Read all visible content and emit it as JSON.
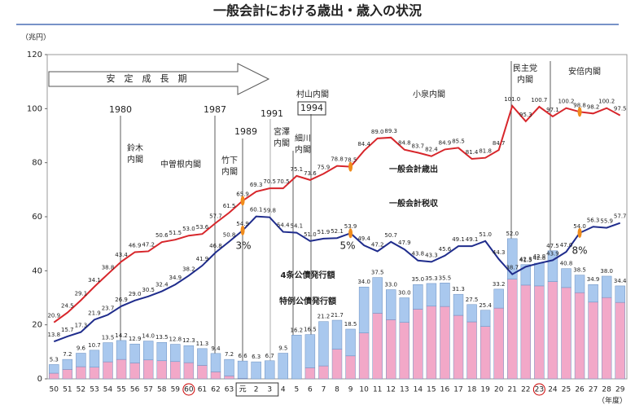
{
  "chart_data": {
    "type": "combo",
    "title": "一般会計における歳出・歳入の状況",
    "y_label": "（兆円）",
    "x_label": "（年度）",
    "categories": [
      "50",
      "51",
      "52",
      "53",
      "54",
      "55",
      "56",
      "57",
      "58",
      "59",
      "60",
      "61",
      "62",
      "63",
      "元",
      "2",
      "3",
      "4",
      "5",
      "6",
      "7",
      "8",
      "9",
      "10",
      "11",
      "12",
      "13",
      "14",
      "15",
      "16",
      "17",
      "18",
      "19",
      "20",
      "21",
      "22",
      "23",
      "24",
      "25",
      "26",
      "27",
      "28",
      "29"
    ],
    "ylim": [
      0,
      120
    ],
    "yticks": [
      0,
      20,
      40,
      60,
      80,
      100,
      120
    ],
    "series": [
      {
        "name": "一般会計歳出",
        "color": "#d7262b",
        "kind": "line",
        "values": [
          20.9,
          24.5,
          29.1,
          34.1,
          38.8,
          43.4,
          46.9,
          47.2,
          50.6,
          51.5,
          53.0,
          53.6,
          57.7,
          61.5,
          65.9,
          69.3,
          70.5,
          70.5,
          75.1,
          73.6,
          75.9,
          78.8,
          78.5,
          84.4,
          89.0,
          89.3,
          84.8,
          83.7,
          82.4,
          84.9,
          85.5,
          81.4,
          81.8,
          84.7,
          101.0,
          95.3,
          100.7,
          97.1,
          100.2,
          98.8,
          98.2,
          100.2,
          97.5
        ],
        "value_labels": [
          "20.9",
          "24.5",
          "29.1",
          "34.1",
          "38.8",
          "43.4",
          "46.9",
          "47.2",
          "50.6",
          "51.5",
          "53.0",
          "53.6",
          "57.7",
          "61.5",
          "65.9",
          "69.3",
          "70.5",
          "70.5",
          "75.1",
          "73.6",
          "75.9",
          "78.8",
          "78.5",
          "84.4",
          "89.0",
          "89.3",
          "84.8",
          "83.7",
          "82.4",
          "84.9",
          "85.5",
          "81.4",
          "81.8",
          "84.7",
          "101.0",
          "95.3",
          "100.7",
          "97.1",
          "100.2",
          "98.8",
          "98.2",
          "100.2",
          "97.5"
        ]
      },
      {
        "name": "一般会計税収",
        "color": "#1f2c8c",
        "kind": "line",
        "values": [
          13.8,
          15.7,
          17.3,
          21.9,
          23.7,
          26.9,
          29.0,
          30.5,
          32.4,
          34.9,
          38.2,
          41.9,
          46.8,
          50.8,
          54.9,
          60.1,
          59.8,
          54.4,
          54.1,
          51.0,
          51.9,
          52.1,
          53.9,
          49.4,
          47.2,
          50.7,
          47.9,
          43.8,
          43.3,
          45.6,
          49.1,
          49.1,
          51.0,
          44.3,
          38.7,
          41.5,
          42.8,
          43.9,
          47.0,
          54.0,
          56.3,
          55.9,
          57.7
        ],
        "value_labels": [
          "13.8",
          "15.7",
          "17.3",
          "21.9",
          "23.7",
          "26.9",
          "29.0",
          "30.5",
          "32.4",
          "34.9",
          "38.2",
          "41.9",
          "46.8",
          "50.8",
          "54.9",
          "60.1",
          "59.8",
          "54.4",
          "54.1",
          "51.0",
          "51.9",
          "52.1",
          "53.9",
          "49.4",
          "47.2",
          "50.7",
          "47.9",
          "43.8",
          "43.3",
          "45.6",
          "49.1",
          "49.1",
          "51.0",
          "44.3",
          "38.7",
          "41.5",
          "42.8",
          "43.9",
          "47.0",
          "54.0",
          "56.3",
          "55.9",
          "57.7"
        ]
      },
      {
        "name": "特例公債発行額",
        "color": "#f2a8c8",
        "kind": "bar",
        "values": [
          2.1,
          3.5,
          4.5,
          4.3,
          6.3,
          7.2,
          5.9,
          7.0,
          6.7,
          6.4,
          6.0,
          5.0,
          2.6,
          1.1,
          0.2,
          0,
          0,
          0,
          0,
          4.1,
          4.8,
          11.0,
          8.5,
          17.0,
          24.3,
          21.9,
          20.9,
          25.8,
          26.9,
          26.8,
          23.5,
          21.1,
          19.4,
          26.2,
          36.9,
          34.7,
          34.4,
          36.0,
          33.8,
          31.9,
          28.4,
          30.1,
          28.3
        ]
      },
      {
        "name": "4条公債発行額",
        "color": "#a9c8ee",
        "kind": "bar",
        "values": [
          3.2,
          3.7,
          5.0,
          6.3,
          7.1,
          7.0,
          7.0,
          7.0,
          6.8,
          6.4,
          6.3,
          6.2,
          6.8,
          6.1,
          6.4,
          6.3,
          6.7,
          9.5,
          16.2,
          12.3,
          16.4,
          10.7,
          9.9,
          17.0,
          13.2,
          11.1,
          9.1,
          9.1,
          8.4,
          8.7,
          7.8,
          6.4,
          6.0,
          7.0,
          15.0,
          7.6,
          8.4,
          11.4,
          7.0,
          6.5,
          6.5,
          7.9,
          6.1
        ]
      }
    ],
    "bar_totals": [
      "5.3",
      "7.2",
      "9.6",
      "10.7",
      "13.5",
      "14.2",
      "12.9",
      "14.0",
      "13.5",
      "12.8",
      "12.3",
      "11.3",
      "9.4",
      "7.2",
      "6.6",
      "6.3",
      "6.7",
      "9.5",
      "16.2",
      "16.5",
      "21.2",
      "21.7",
      "18.5",
      "34.0",
      "37.5",
      "33.0",
      "30.0",
      "35.0",
      "35.3",
      "35.5",
      "31.3",
      "27.5",
      "25.4",
      "33.2",
      "52.0",
      "42.3",
      "42.8",
      "47.5",
      "40.8",
      "38.5",
      "34.9",
      "38.0",
      "34.4"
    ],
    "annotations": {
      "period": "安　定　成　長　期",
      "y1980": "1980",
      "y1987": "1987",
      "y1989": "1989",
      "y1991": "1991",
      "y1994": "1994",
      "murayama": "村山内閣",
      "suzuki": [
        "鈴木",
        "内閣"
      ],
      "nakasone": "中曽根内閣",
      "takeshita": [
        "竹下",
        "内閣"
      ],
      "miyazawa": [
        "宮澤",
        "内閣"
      ],
      "hosokawa": [
        "細川",
        "内閣"
      ],
      "koizumi": "小泉内閣",
      "minshu": [
        "民主党",
        "内閣"
      ],
      "abe": "安倍内閣",
      "tax3": "3%",
      "tax5": "5%",
      "tax8": "8%"
    }
  }
}
